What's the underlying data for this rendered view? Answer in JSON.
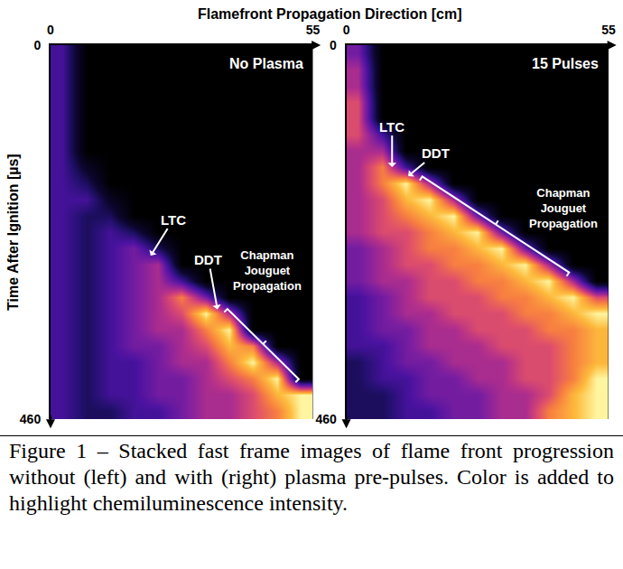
{
  "chart_data": [
    {
      "type": "heatmap",
      "title": "No Plasma",
      "x_label": "Flamefront Propagation Direction [cm]",
      "y_label": "Time After Ignition [µs]",
      "x": [
        2.5,
        7.5,
        12.5,
        17.5,
        22.5,
        27.5,
        32.5,
        37.5,
        42.5,
        47.5,
        52.5
      ],
      "y": [
        10,
        30,
        50,
        70,
        90,
        110,
        130,
        150,
        170,
        190,
        210,
        230,
        250,
        270,
        290,
        310,
        330,
        350,
        370,
        390,
        410,
        430,
        450
      ],
      "z": [
        [
          3,
          0,
          0,
          0,
          0,
          0,
          0,
          0,
          0,
          0,
          0
        ],
        [
          3,
          0,
          0,
          0,
          0,
          0,
          0,
          0,
          0,
          0,
          0
        ],
        [
          3,
          0,
          0,
          0,
          0,
          0,
          0,
          0,
          0,
          0,
          0
        ],
        [
          3,
          0,
          0,
          0,
          0,
          0,
          0,
          0,
          0,
          0,
          0
        ],
        [
          3,
          0,
          0,
          0,
          0,
          0,
          0,
          0,
          0,
          0,
          0
        ],
        [
          3,
          0,
          0,
          0,
          0,
          0,
          0,
          0,
          0,
          0,
          0
        ],
        [
          3,
          0,
          0,
          0,
          0,
          0,
          0,
          0,
          0,
          0,
          0
        ],
        [
          3,
          1,
          0,
          0,
          0,
          0,
          0,
          0,
          0,
          0,
          0
        ],
        [
          3,
          2,
          0,
          0,
          0,
          0,
          0,
          0,
          0,
          0,
          0
        ],
        [
          3,
          3,
          1,
          0,
          0,
          0,
          0,
          0,
          0,
          0,
          0
        ],
        [
          3,
          2,
          2,
          0,
          0,
          0,
          0,
          0,
          0,
          0,
          0
        ],
        [
          3,
          2,
          3,
          2,
          0,
          0,
          0,
          0,
          0,
          0,
          0
        ],
        [
          3,
          2,
          3,
          4,
          2,
          0,
          0,
          0,
          0,
          0,
          0
        ],
        [
          3,
          2,
          3,
          4,
          5,
          0,
          0,
          0,
          0,
          0,
          0
        ],
        [
          3,
          2,
          3,
          4,
          5,
          3,
          0,
          0,
          0,
          0,
          0
        ],
        [
          3,
          2,
          3,
          4,
          5,
          7,
          4,
          0,
          0,
          0,
          0
        ],
        [
          3,
          2,
          3,
          4,
          5,
          6,
          9,
          5,
          0,
          0,
          0
        ],
        [
          3,
          2,
          3,
          4,
          5,
          5,
          7,
          9,
          0,
          0,
          0
        ],
        [
          3,
          2,
          3,
          4,
          4,
          5,
          6,
          8,
          7,
          0,
          0
        ],
        [
          3,
          2,
          3,
          3,
          4,
          5,
          5,
          7,
          9,
          5,
          0
        ],
        [
          3,
          2,
          3,
          3,
          4,
          4,
          5,
          6,
          7,
          9,
          0
        ],
        [
          3,
          2,
          3,
          3,
          4,
          4,
          5,
          5,
          6,
          8,
          9
        ],
        [
          3,
          2,
          2,
          3,
          3,
          4,
          5,
          5,
          6,
          7,
          9
        ]
      ],
      "color_range": [
        0,
        9
      ],
      "xlim": [
        0,
        55
      ],
      "xticks": [
        0,
        55
      ],
      "ylim": [
        460,
        0
      ],
      "yticks": [
        0,
        460
      ],
      "annotations": [
        {
          "text": "LTC",
          "x": 21,
          "y": 259
        },
        {
          "text": "DDT",
          "x": 35,
          "y": 325
        },
        {
          "text": "Chapman Jouguet Propagation",
          "x": [
            35,
            52
          ],
          "y": [
            325,
            423
          ]
        }
      ]
    },
    {
      "type": "heatmap",
      "title": "15 Pulses",
      "x": [
        2.5,
        7.5,
        12.5,
        17.5,
        22.5,
        27.5,
        32.5,
        37.5,
        42.5,
        47.5,
        52.5
      ],
      "y": [
        10,
        30,
        50,
        70,
        90,
        110,
        130,
        150,
        170,
        190,
        210,
        230,
        250,
        270,
        290,
        310,
        330,
        350,
        370,
        390,
        410,
        430,
        450
      ],
      "z": [
        [
          4,
          0,
          0,
          0,
          0,
          0,
          0,
          0,
          0,
          0,
          0
        ],
        [
          5,
          0,
          0,
          0,
          0,
          0,
          0,
          0,
          0,
          0,
          0
        ],
        [
          5,
          0,
          0,
          0,
          0,
          0,
          0,
          0,
          0,
          0,
          0
        ],
        [
          6,
          0,
          0,
          0,
          0,
          0,
          0,
          0,
          0,
          0,
          0
        ],
        [
          6,
          0,
          0,
          0,
          0,
          0,
          0,
          0,
          0,
          0,
          0
        ],
        [
          6,
          3,
          0,
          0,
          0,
          0,
          0,
          0,
          0,
          0,
          0
        ],
        [
          5,
          5,
          0,
          0,
          0,
          0,
          0,
          0,
          0,
          0,
          0
        ],
        [
          5,
          7,
          3,
          0,
          0,
          0,
          0,
          0,
          0,
          0,
          0
        ],
        [
          5,
          7,
          9,
          5,
          0,
          0,
          0,
          0,
          0,
          0,
          0
        ],
        [
          5,
          6,
          8,
          9,
          5,
          0,
          0,
          0,
          0,
          0,
          0
        ],
        [
          5,
          6,
          7,
          8,
          9,
          4,
          0,
          0,
          0,
          0,
          0
        ],
        [
          5,
          6,
          6,
          7,
          8,
          9,
          4,
          0,
          0,
          0,
          0
        ],
        [
          4,
          5,
          6,
          7,
          7,
          8,
          9,
          4,
          0,
          0,
          0
        ],
        [
          4,
          5,
          6,
          6,
          7,
          7,
          8,
          9,
          5,
          0,
          0
        ],
        [
          4,
          5,
          5,
          6,
          6,
          7,
          7,
          8,
          9,
          5,
          0
        ],
        [
          3,
          4,
          5,
          6,
          6,
          6,
          7,
          7,
          8,
          9,
          6
        ],
        [
          3,
          4,
          5,
          5,
          6,
          6,
          6,
          7,
          7,
          8,
          9
        ],
        [
          3,
          4,
          4,
          5,
          5,
          6,
          6,
          6,
          7,
          7,
          8
        ],
        [
          3,
          3,
          4,
          5,
          5,
          5,
          6,
          6,
          6,
          7,
          8
        ],
        [
          2,
          3,
          4,
          4,
          5,
          5,
          5,
          6,
          6,
          7,
          8
        ],
        [
          2,
          3,
          3,
          4,
          4,
          5,
          5,
          6,
          6,
          7,
          9
        ],
        [
          2,
          2,
          3,
          4,
          4,
          4,
          5,
          5,
          6,
          8,
          9
        ],
        [
          2,
          2,
          3,
          3,
          4,
          4,
          5,
          5,
          7,
          8,
          9
        ]
      ],
      "color_range": [
        0,
        9
      ],
      "xlim": [
        0,
        55
      ],
      "xticks": [
        0,
        55
      ],
      "ylim": [
        460,
        0
      ],
      "yticks": [
        0,
        460
      ],
      "annotations": [
        {
          "text": "LTC",
          "x": 9.6,
          "y": 150
        },
        {
          "text": "DDT",
          "x": 13,
          "y": 161
        },
        {
          "text": "Chapman Jouguet Propagation",
          "x": [
            13,
            48
          ],
          "y": [
            161,
            295
          ]
        }
      ]
    }
  ],
  "caption": "Figure 1 – Stacked fast frame images of flame front progression without (left) and with (right) plasma pre-pulses. Color is added to highlight chemiluminescence intensity."
}
